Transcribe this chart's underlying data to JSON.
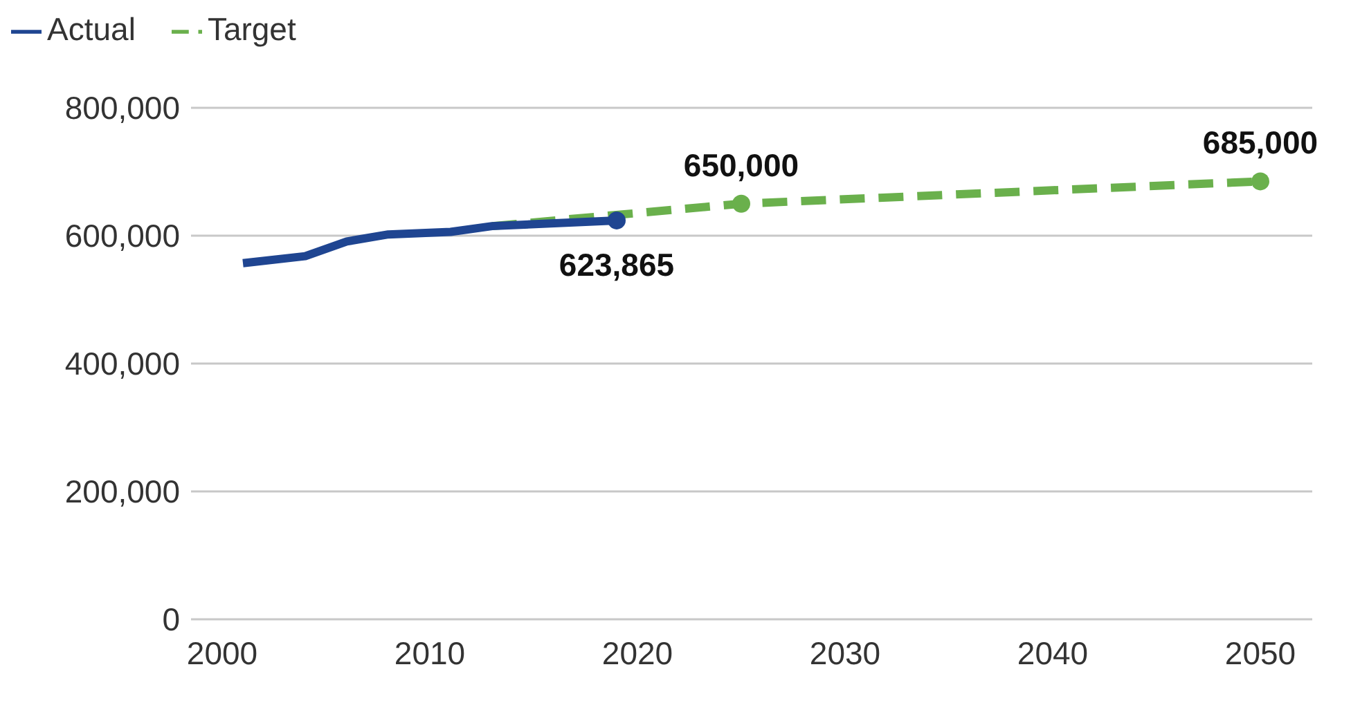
{
  "chart_data": {
    "type": "line",
    "xlim": [
      1998.5,
      2052.5
    ],
    "xticks": [
      2000,
      2010,
      2020,
      2030,
      2040,
      2050
    ],
    "ylim": [
      0,
      800000
    ],
    "yticks": [
      {
        "value": 0,
        "label": "0"
      },
      {
        "value": 200000,
        "label": "200,000"
      },
      {
        "value": 400000,
        "label": "400,000"
      },
      {
        "value": 600000,
        "label": "600,000"
      },
      {
        "value": 800000,
        "label": "800,000"
      }
    ],
    "grid": "y",
    "legend": "top left",
    "series": [
      {
        "name": "Target",
        "color": "#6ab04c",
        "line_style": "dashed",
        "x": [
          2013,
          2025,
          2050
        ],
        "values": [
          615000,
          650000,
          685000
        ],
        "value_labels": [
          null,
          "650,000",
          "685,000"
        ]
      },
      {
        "name": "Actual",
        "color": "#1f4591",
        "line_style": "solid",
        "x": [
          2001,
          2004,
          2006,
          2008,
          2011,
          2013,
          2019
        ],
        "values": [
          557000,
          568000,
          591000,
          602000,
          606000,
          615000,
          623865
        ],
        "value_labels": [
          null,
          null,
          null,
          null,
          null,
          null,
          "623,865"
        ]
      }
    ]
  }
}
